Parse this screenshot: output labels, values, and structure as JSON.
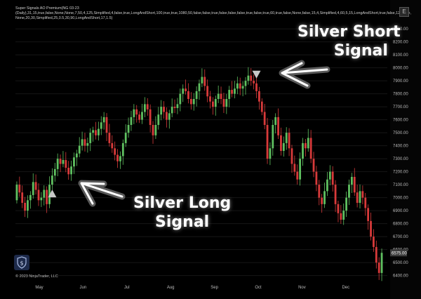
{
  "header": {
    "line1": "Super Signals AO Premium(NG 03-23",
    "line2": "(Daily),31,15,true,false,None,None,7,50,4,125,Simplified,4,false,true,LongAndShort,100,true,true,1080,50,false,false,true,false,false,false,true,false,true,60,true,false,None,false,15,4,Simplified,4,60,5,15,LongAndShort,true,false,12,None,",
    "line3": "None,20,30,Simplified,25,0.5,30,90,LongAndShort,17,1.5)"
  },
  "toolbar": {
    "expand_label": "E"
  },
  "annotations": {
    "short_line1": "Silver Short",
    "short_line2": "Signal",
    "long_line1": "Silver Long",
    "long_line2": "Signal"
  },
  "copyright": "© 2023 NinjaTrader, LLC",
  "colors": {
    "up": "#5fc060",
    "down": "#d83a3a",
    "grid": "#161616",
    "price_tag": "#3c3c3c"
  },
  "chart_data": {
    "type": "candlestick",
    "ylim": [
      6360,
      8360
    ],
    "y_ticks": [
      8300,
      8200,
      8100,
      8000,
      7900,
      7800,
      7700,
      7600,
      7500,
      7400,
      7300,
      7200,
      7100,
      7000,
      6900,
      6800,
      6700,
      6600,
      6500,
      6400
    ],
    "y_tick_labels": [
      "8300.00",
      "8200.00",
      "8100.00",
      "8000.00",
      "7900.00",
      "7800.00",
      "7700.00",
      "7600.00",
      "7500.00",
      "7400.00",
      "7300.00",
      "7200.00",
      "7100.00",
      "7000.00",
      "6900.00",
      "6800.00",
      "6700.00",
      "6600.00",
      "6500.00",
      "6400.00"
    ],
    "x_labels": [
      "May",
      "Jun",
      "Jul",
      "Aug",
      "Sep",
      "Oct",
      "Nov",
      "Dec"
    ],
    "last_price": 6575,
    "last_price_label": "6575.00",
    "signals": [
      {
        "type": "long",
        "index": 13
      },
      {
        "type": "short",
        "index": 88
      }
    ],
    "series": [
      [
        6980,
        7100
      ],
      [
        7100,
        7040
      ],
      [
        7040,
        6960
      ],
      [
        6960,
        6900
      ],
      [
        6900,
        6980
      ],
      [
        6980,
        7020
      ],
      [
        7020,
        7120
      ],
      [
        7120,
        7060
      ],
      [
        7060,
        6980
      ],
      [
        6980,
        7000
      ],
      [
        7000,
        7060
      ],
      [
        7060,
        6950
      ],
      [
        6950,
        7100
      ],
      [
        7100,
        7170
      ],
      [
        7170,
        7220
      ],
      [
        7220,
        7300
      ],
      [
        7300,
        7260
      ],
      [
        7260,
        7290
      ],
      [
        7290,
        7230
      ],
      [
        7230,
        7180
      ],
      [
        7180,
        7240
      ],
      [
        7240,
        7310
      ],
      [
        7310,
        7340
      ],
      [
        7340,
        7400
      ],
      [
        7400,
        7450
      ],
      [
        7450,
        7400
      ],
      [
        7400,
        7420
      ],
      [
        7420,
        7500
      ],
      [
        7500,
        7520
      ],
      [
        7520,
        7480
      ],
      [
        7480,
        7530
      ],
      [
        7530,
        7580
      ],
      [
        7580,
        7620
      ],
      [
        7620,
        7500
      ],
      [
        7500,
        7420
      ],
      [
        7420,
        7380
      ],
      [
        7380,
        7330
      ],
      [
        7330,
        7280
      ],
      [
        7280,
        7320
      ],
      [
        7320,
        7420
      ],
      [
        7420,
        7500
      ],
      [
        7500,
        7560
      ],
      [
        7560,
        7620
      ],
      [
        7620,
        7680
      ],
      [
        7680,
        7640
      ],
      [
        7640,
        7600
      ],
      [
        7600,
        7660
      ],
      [
        7660,
        7720
      ],
      [
        7720,
        7680
      ],
      [
        7680,
        7560
      ],
      [
        7560,
        7480
      ],
      [
        7480,
        7560
      ],
      [
        7560,
        7640
      ],
      [
        7640,
        7700
      ],
      [
        7700,
        7660
      ],
      [
        7660,
        7600
      ],
      [
        7600,
        7650
      ],
      [
        7650,
        7700
      ],
      [
        7700,
        7690
      ],
      [
        7690,
        7720
      ],
      [
        7720,
        7800
      ],
      [
        7800,
        7840
      ],
      [
        7840,
        7820
      ],
      [
        7820,
        7760
      ],
      [
        7760,
        7720
      ],
      [
        7720,
        7760
      ],
      [
        7760,
        7820
      ],
      [
        7820,
        7880
      ],
      [
        7880,
        7930
      ],
      [
        7930,
        7860
      ],
      [
        7860,
        7780
      ],
      [
        7780,
        7740
      ],
      [
        7740,
        7700
      ],
      [
        7700,
        7760
      ],
      [
        7760,
        7800
      ],
      [
        7800,
        7760
      ],
      [
        7760,
        7700
      ],
      [
        7700,
        7760
      ],
      [
        7760,
        7830
      ],
      [
        7830,
        7800
      ],
      [
        7800,
        7840
      ],
      [
        7840,
        7880
      ],
      [
        7880,
        7840
      ],
      [
        7840,
        7860
      ],
      [
        7860,
        7900
      ],
      [
        7900,
        7940
      ],
      [
        7940,
        7900
      ],
      [
        7900,
        7880
      ],
      [
        7880,
        7820
      ],
      [
        7820,
        7740
      ],
      [
        7740,
        7660
      ],
      [
        7660,
        7560
      ],
      [
        7560,
        7300
      ],
      [
        7300,
        7380
      ],
      [
        7380,
        7560
      ],
      [
        7560,
        7620
      ],
      [
        7620,
        7480
      ],
      [
        7480,
        7360
      ],
      [
        7360,
        7420
      ],
      [
        7420,
        7500
      ],
      [
        7500,
        7380
      ],
      [
        7380,
        7260
      ],
      [
        7260,
        7200
      ],
      [
        7200,
        7140
      ],
      [
        7140,
        7300
      ],
      [
        7300,
        7420
      ],
      [
        7420,
        7380
      ],
      [
        7380,
        7460
      ],
      [
        7460,
        7300
      ],
      [
        7300,
        7200
      ],
      [
        7200,
        7100
      ],
      [
        7100,
        7000
      ],
      [
        7000,
        6950
      ],
      [
        6950,
        7050
      ],
      [
        7050,
        7140
      ],
      [
        7140,
        7200
      ],
      [
        7200,
        7100
      ],
      [
        7100,
        6950
      ],
      [
        6950,
        6880
      ],
      [
        6880,
        6830
      ],
      [
        6830,
        6900
      ],
      [
        6900,
        7000
      ],
      [
        7000,
        7100
      ],
      [
        7100,
        7160
      ],
      [
        7160,
        7040
      ],
      [
        7040,
        6960
      ],
      [
        6960,
        7050
      ],
      [
        7050,
        7000
      ],
      [
        7000,
        6920
      ],
      [
        6920,
        6820
      ],
      [
        6820,
        6700
      ],
      [
        6700,
        6620
      ],
      [
        6620,
        6500
      ],
      [
        6500,
        6420
      ],
      [
        6420,
        6575
      ]
    ]
  }
}
